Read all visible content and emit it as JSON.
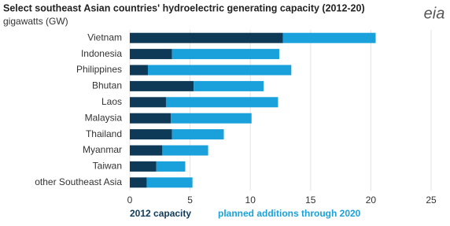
{
  "chart_data": {
    "type": "stacked-barh",
    "title": "Select southeast Asian countries' hydroelectric generating capacity (2012-20)",
    "subtitle": "gigawatts (GW)",
    "logo": "eia",
    "categories": [
      "Vietnam",
      "Indonesia",
      "Philippines",
      "Bhutan",
      "Laos",
      "Malaysia",
      "Thailand",
      "Myanmar",
      "Taiwan",
      "other Southeast Asia"
    ],
    "series": [
      {
        "name": "2012 capacity",
        "color": "#0f3a57",
        "values": [
          12.7,
          3.5,
          1.5,
          5.3,
          3.0,
          3.4,
          3.5,
          2.7,
          2.2,
          1.4
        ]
      },
      {
        "name": "planned additions through 2020",
        "color": "#1aa1db",
        "values": [
          7.7,
          8.9,
          11.9,
          5.8,
          9.3,
          6.7,
          4.3,
          3.8,
          2.4,
          3.8
        ]
      }
    ],
    "xlim": [
      0,
      25
    ],
    "xticks": [
      0,
      5,
      10,
      15,
      20,
      25
    ],
    "grid": true
  }
}
